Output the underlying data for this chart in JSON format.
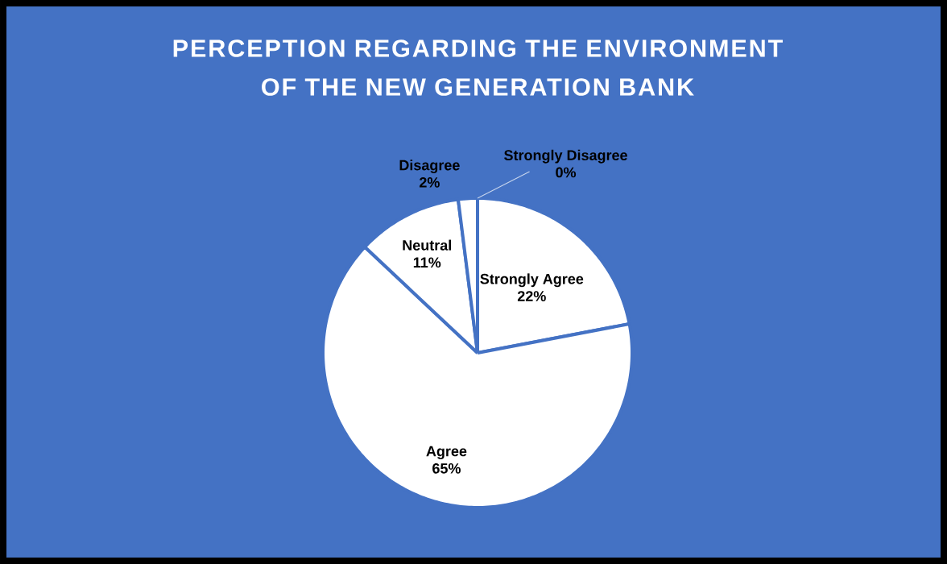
{
  "chart_data": {
    "type": "pie",
    "title": "PERCEPTION REGARDING THE ENVIRONMENT OF THE NEW GENERATION BANK",
    "categories": [
      "Strongly Agree",
      "Agree",
      "Neutral",
      "Disagree",
      "Strongly Disagree"
    ],
    "values": [
      22,
      65,
      11,
      2,
      0
    ],
    "colors": [
      "#ffffff",
      "#ffffff",
      "#ffffff",
      "#ffffff",
      "#ffffff"
    ],
    "value_labels": [
      "22%",
      "65%",
      "11%",
      "2%",
      "0%"
    ]
  }
}
